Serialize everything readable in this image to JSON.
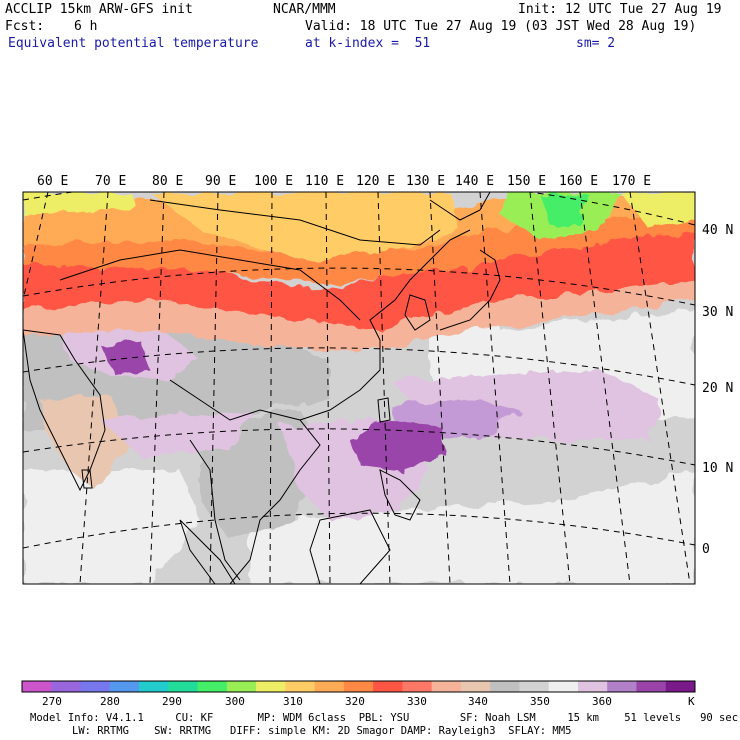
{
  "header": {
    "model": "ACCLIP 15km ARW-GFS init",
    "org": "NCAR/MMM",
    "init": "Init: 12 UTC Tue 27 Aug 19",
    "fcst_label": "Fcst:",
    "fcst_value": "6 h",
    "valid": "Valid: 18 UTC Tue 27 Aug 19 (03 JST Wed 28 Aug 19)",
    "field": "Equivalent potential temperature",
    "level": "at k-index =  51",
    "smoothing": "sm= 2"
  },
  "map": {
    "lon_labels": [
      "60 E",
      "70 E",
      "80 E",
      "90 E",
      "100 E",
      "110 E",
      "120 E",
      "130 E",
      "140 E",
      "150 E",
      "160 E",
      "170 E"
    ],
    "lat_labels": [
      "40 N",
      "30 N",
      "20 N",
      "10 N",
      "0"
    ],
    "colors": {
      "c270": "#cc44cc",
      "c275": "#9966dd",
      "c280": "#7777ee",
      "c285": "#5599ee",
      "c290": "#22cccc",
      "c295": "#22dd99",
      "c300": "#44ee66",
      "c305": "#99ee55",
      "c310": "#eeee66",
      "c315": "#ffcc66",
      "c320": "#ffaa55",
      "c325": "#ff8844",
      "c330": "#ff5544",
      "c335": "#ff6666",
      "c340": "#f5b499",
      "c345": "#e8c6b0",
      "c350": "#c0c0c0",
      "c355": "#d2d2d2",
      "c360": "#efefef",
      "c365": "#e0c3e0",
      "c370": "#c39ad5",
      "c375": "#9a44aa",
      "c380": "#7a1a8a",
      "coast": "#000000",
      "grid": "#000000"
    }
  },
  "colorbar": {
    "colors": [
      "#cc55cc",
      "#9966dd",
      "#7777ee",
      "#5599ee",
      "#22cccc",
      "#22dd99",
      "#44ee66",
      "#99ee55",
      "#eeee66",
      "#ffcc66",
      "#ffaa55",
      "#ff8844",
      "#ff5544",
      "#ff7766",
      "#f5b499",
      "#e8c6b0",
      "#c0c0c0",
      "#d2d2d2",
      "#efefef",
      "#e0c3e0",
      "#b080c8",
      "#9a44aa",
      "#7a1a8a"
    ],
    "tick_labels": [
      "270",
      "280",
      "290",
      "300",
      "310",
      "320",
      "330",
      "340",
      "350",
      "360"
    ],
    "unit": "K"
  },
  "footer": {
    "line1": "Model Info: V4.1.1     CU: KF       MP: WDM 6class  PBL: YSU        SF: Noah LSM     15 km    51 levels   90 sec",
    "line2": "LW: RRTMG    SW: RRTMG   DIFF: simple KM: 2D Smagor DAMP: Rayleigh3  SFLAY: MM5"
  }
}
